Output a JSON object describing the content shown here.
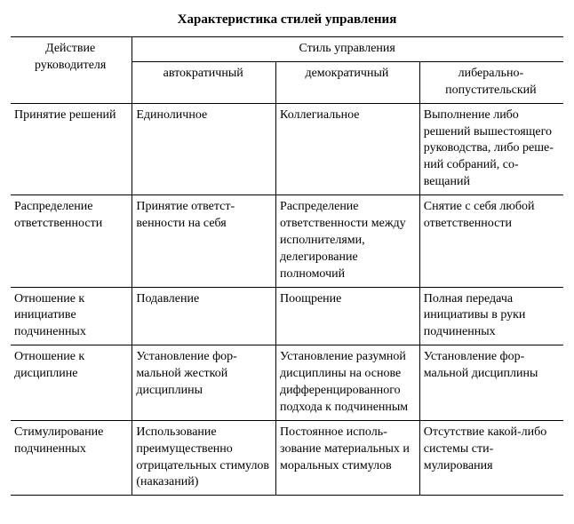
{
  "title": "Характеристика стилей управления",
  "header": {
    "action": "Действие руководителя",
    "style_group": "Стиль управления",
    "styles": {
      "autocratic": "автократичный",
      "democratic": "демократичный",
      "liberal": "либерально-попустительский"
    }
  },
  "rows": [
    {
      "action": "Принятие решений",
      "autocratic": "Единоличное",
      "democratic": "Коллегиальное",
      "liberal": "Выполнение либо решений вышесто­ящего руковод­ства, либо реше­ний собраний, со­вещаний"
    },
    {
      "action": "Распределение ответственности",
      "autocratic": "Принятие ответст­венности на себя",
      "democratic": "Распределение ответственности между исполнителя­ми, делегирование полномочий",
      "liberal": "Снятие с себя лю­бой ответствен­ности"
    },
    {
      "action": "Отношение к инициативе подчиненных",
      "autocratic": "Подавление",
      "democratic": "Поощрение",
      "liberal": "Полная передача инициативы в руки подчиненных"
    },
    {
      "action": "Отношение к дисциплине",
      "autocratic": "Установление фор­мальной жесткой дисциплины",
      "democratic": "Установление разум­ной дисциплины на основе дифферен­цированного подхода к подчиненным",
      "liberal": "Установление фор­мальной дисцип­лины"
    },
    {
      "action": "Стимулирование подчиненных",
      "autocratic": "Использование преимущественно отрицательных сти­мулов (наказаний)",
      "democratic": "Постоянное исполь­зование материаль­ных и моральных сти­мулов",
      "liberal": "Отсутствие какой-либо системы сти­мулирования"
    }
  ]
}
